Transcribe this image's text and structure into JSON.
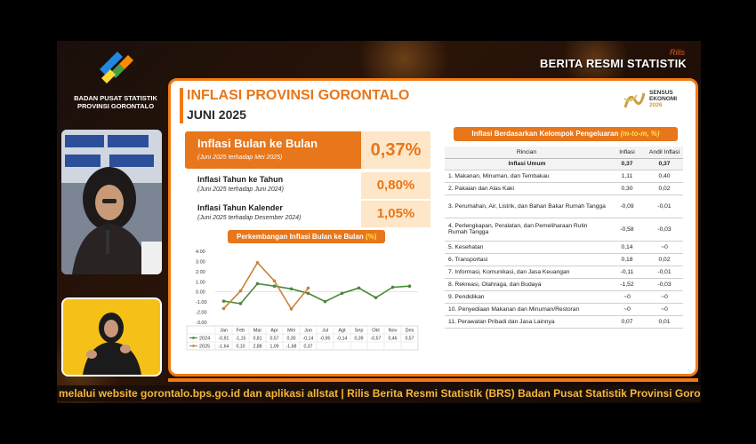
{
  "brand": {
    "org_line1": "BADAN PUSAT STATISTIK",
    "org_line2": "PROVINSI GORONTALO",
    "banner": "BERITA RESMI STATISTIK",
    "banner_mark": "Rilis"
  },
  "title": {
    "heading": "INFLASI PROVINSI GORONTALO",
    "period": "JUNI 2025"
  },
  "sensus": {
    "line1": "SENSUS",
    "line2": "EKONOMI",
    "year": "2026"
  },
  "stats": {
    "mtm": {
      "name": "Inflasi Bulan ke Bulan",
      "sub": "(Juni 2025 terhadap Mei 2025)",
      "value": "0,37%"
    },
    "yoy": {
      "name": "Inflasi Tahun ke Tahun",
      "sub": "(Juni 2025 terhadap Juni 2024)",
      "value": "0,80%"
    },
    "ytd": {
      "name": "Inflasi Tahun Kalender",
      "sub": "(Juni 2025 terhadap Desember 2024)",
      "value": "1,05%"
    }
  },
  "chart_title": {
    "text": "Perkembangan Inflasi Bulan ke Bulan",
    "unit": "(%)"
  },
  "chart_data": {
    "type": "line",
    "categories": [
      "Jan",
      "Feb",
      "Mar",
      "Apr",
      "Mei",
      "Jun",
      "Jul",
      "Agt",
      "Sep",
      "Okt",
      "Nov",
      "Des"
    ],
    "series": [
      {
        "name": "2024",
        "color": "#4a8a3a",
        "values": [
          -0.91,
          -1.15,
          0.81,
          0.57,
          0.3,
          -0.14,
          -0.95,
          -0.14,
          0.39,
          -0.57,
          0.46,
          0.57
        ],
        "labels": [
          "-0,91",
          "-1,15",
          "0,81",
          "0,57",
          "0,30",
          "-0,14",
          "-0,95",
          "-0,14",
          "0,39",
          "-0,57",
          "0,46",
          "0,57"
        ]
      },
      {
        "name": "2025",
        "color": "#c8823a",
        "values": [
          -1.64,
          0.1,
          2.88,
          1.09,
          -1.68,
          0.37,
          null,
          null,
          null,
          null,
          null,
          null
        ],
        "labels": [
          "-1,64",
          "0,10",
          "2,88",
          "1,09",
          "-1,68",
          "0,37",
          "",
          "",
          "",
          "",
          "",
          ""
        ]
      }
    ],
    "yticks": [
      "4.00",
      "3.00",
      "2.00",
      "1.00",
      "0.00",
      "-1.00",
      "-2.00",
      "-3.00"
    ],
    "ylim": [
      -3,
      4
    ]
  },
  "table": {
    "title_prefix": "Inflasi Berdasarkan Kelompok Pengeluaran",
    "title_mark": "(m-to-m, %)",
    "headers": [
      "Rincian",
      "Inflasi",
      "Andil Inflasi"
    ],
    "total": [
      "Inflasi Umum",
      "0,37",
      "0,37"
    ],
    "rows": [
      [
        "1.  Makanan, Minuman, dan Tembakau",
        "1,11",
        "0,40"
      ],
      [
        "2.  Pakaian dan Alas Kaki",
        "0,30",
        "0,02"
      ],
      [
        "3.  Perumahan, Air, Listrik, dan Bahan Bakar Rumah Tangga",
        "-0,09",
        "-0,01"
      ],
      [
        "4.  Perlengkapan, Peralatan, dan Pemeliharaan Rutin Rumah Tangga",
        "-0,58",
        "-0,03"
      ],
      [
        "5.  Kesehatan",
        "0,14",
        "~0"
      ],
      [
        "6.  Transportasi",
        "0,18",
        "0,02"
      ],
      [
        "7.  Informasi, Komunikasi, dan Jasa Keuangan",
        "-0,11",
        "-0,01"
      ],
      [
        "8.  Rekreasi, Olahraga, dan Budaya",
        "-1,52",
        "-0,03"
      ],
      [
        "9.  Pendidikan",
        "~0",
        "~0"
      ],
      [
        "10. Penyediaan Makanan dan Minuman/Restoran",
        "~0",
        "~0"
      ],
      [
        "11. Perawatan Pribadi dan Jasa Lainnya",
        "0,07",
        "0,01"
      ]
    ]
  },
  "ticker": "melalui website gorontalo.bps.go.id dan aplikasi allstat | Rilis Berita Resmi Statistik (BRS) Badan Pusat Statistik Provinsi Gorontalo | Da"
}
